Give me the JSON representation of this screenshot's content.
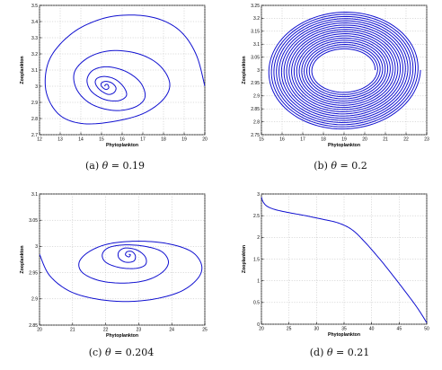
{
  "chart_data": [
    {
      "id": "a",
      "type": "line",
      "caption_prefix": "(a)",
      "caption_theta": "θ",
      "caption_value": "= 0.19",
      "xlabel": "Phytoplankton",
      "ylabel": "Zooplankton",
      "xlim": [
        12,
        20
      ],
      "ylim": [
        2.7,
        3.5
      ],
      "xticks": [
        12,
        13,
        14,
        15,
        16,
        17,
        18,
        19,
        20
      ],
      "yticks": [
        2.7,
        2.8,
        2.9,
        3.0,
        3.1,
        3.2,
        3.3,
        3.4,
        3.5
      ],
      "xticklabels": [
        "12",
        "13",
        "14",
        "15",
        "16",
        "17",
        "18",
        "19",
        "20"
      ],
      "yticklabels": [
        "2.7",
        "2.8",
        "2.9",
        "3",
        "3.1",
        "3.2",
        "3.3",
        "3.4",
        "3.5"
      ],
      "grid": true,
      "series": [
        {
          "style": "spiral-in",
          "color": "#1010d0",
          "center": [
            15.2,
            3.0
          ],
          "x": [
            20.0,
            19.6,
            18.9,
            17.9,
            16.6,
            15.1,
            13.6,
            12.5,
            12.3,
            12.9,
            14.0,
            15.5,
            17.0,
            18.0,
            18.3,
            17.8,
            16.8,
            15.5,
            14.4,
            13.7,
            13.8,
            14.5,
            15.6,
            16.6,
            17.1,
            16.9,
            16.2,
            15.3,
            14.6,
            14.3,
            14.5,
            15.1,
            15.8,
            16.2,
            16.1,
            15.7,
            15.2,
            14.8,
            14.7,
            14.9,
            15.3,
            15.6,
            15.7,
            15.5,
            15.2,
            15.0,
            15.0,
            15.2,
            15.35,
            15.3,
            15.2,
            15.15
          ],
          "y": [
            3.0,
            3.19,
            3.33,
            3.41,
            3.44,
            3.42,
            3.33,
            3.17,
            2.98,
            2.83,
            2.77,
            2.78,
            2.83,
            2.92,
            3.02,
            3.13,
            3.2,
            3.22,
            3.18,
            3.09,
            2.98,
            2.89,
            2.85,
            2.87,
            2.93,
            3.02,
            3.09,
            3.12,
            3.1,
            3.04,
            2.97,
            2.92,
            2.91,
            2.94,
            2.99,
            3.04,
            3.06,
            3.05,
            3.02,
            2.98,
            2.95,
            2.96,
            2.99,
            3.02,
            3.03,
            3.02,
            3.0,
            2.98,
            2.99,
            3.01,
            3.01,
            3.0
          ]
        }
      ]
    },
    {
      "id": "b",
      "type": "line",
      "caption_prefix": "(b)",
      "caption_theta": "θ",
      "caption_value": "= 0.2",
      "xlabel": "Phytoplankton",
      "ylabel": "Zooplankton",
      "xlim": [
        15,
        23
      ],
      "ylim": [
        2.75,
        3.25
      ],
      "xticks": [
        15,
        16,
        17,
        18,
        19,
        20,
        21,
        22,
        23
      ],
      "yticks": [
        2.75,
        2.8,
        2.85,
        2.9,
        2.95,
        3.0,
        3.05,
        3.1,
        3.15,
        3.2,
        3.25
      ],
      "xticklabels": [
        "15",
        "16",
        "17",
        "18",
        "19",
        "20",
        "21",
        "22",
        "23"
      ],
      "yticklabels": [
        "2.75",
        "2.8",
        "2.85",
        "2.9",
        "2.95",
        "3",
        "3.05",
        "3.1",
        "3.15",
        "3.2",
        "3.25"
      ],
      "grid": true,
      "series": [
        {
          "style": "spiral-out",
          "color": "#1010d0",
          "center": [
            19.0,
            3.0
          ],
          "inner_radius": [
            1.5,
            0.08
          ],
          "outer_radius": [
            3.7,
            0.23
          ],
          "turns": 18
        }
      ]
    },
    {
      "id": "c",
      "type": "line",
      "caption_prefix": "(c)",
      "caption_theta": "θ",
      "caption_value": "= 0.204",
      "xlabel": "Phytoplankton",
      "ylabel": "Zooplankton",
      "xlim": [
        20,
        25
      ],
      "ylim": [
        2.85,
        3.1
      ],
      "xticks": [
        20,
        21,
        22,
        23,
        24,
        25
      ],
      "yticks": [
        2.85,
        2.9,
        2.95,
        3.0,
        3.05,
        3.1
      ],
      "xticklabels": [
        "20",
        "21",
        "22",
        "23",
        "24",
        "25"
      ],
      "yticklabels": [
        "2.85",
        "2.9",
        "2.95",
        "3",
        "3.05",
        "3.1"
      ],
      "grid": true,
      "series": [
        {
          "style": "spiral-in",
          "color": "#1010d0",
          "center": [
            22.7,
            2.985
          ],
          "x": [
            20.0,
            20.3,
            20.9,
            21.7,
            22.6,
            23.5,
            24.3,
            24.8,
            24.9,
            24.6,
            23.9,
            23.0,
            22.1,
            21.5,
            21.2,
            21.3,
            21.8,
            22.5,
            23.2,
            23.7,
            23.9,
            23.7,
            23.2,
            22.6,
            22.1,
            21.9,
            22.0,
            22.4,
            22.9,
            23.2,
            23.2,
            22.95,
            22.6,
            22.4,
            22.4,
            22.6,
            22.85,
            22.9,
            22.8,
            22.65,
            22.6,
            22.7,
            22.75,
            22.7
          ],
          "y": [
            2.985,
            2.945,
            2.915,
            2.9,
            2.895,
            2.9,
            2.915,
            2.94,
            2.965,
            2.99,
            3.005,
            3.01,
            3.005,
            2.99,
            2.97,
            2.95,
            2.935,
            2.93,
            2.935,
            2.95,
            2.97,
            2.99,
            3.0,
            3.003,
            2.998,
            2.985,
            2.97,
            2.96,
            2.958,
            2.965,
            2.98,
            2.993,
            2.997,
            2.99,
            2.978,
            2.97,
            2.972,
            2.982,
            2.99,
            2.99,
            2.984,
            2.98,
            2.984,
            2.985
          ]
        }
      ]
    },
    {
      "id": "d",
      "type": "line",
      "caption_prefix": "(d)",
      "caption_theta": "θ",
      "caption_value": "= 0.21",
      "xlabel": "Phytoplankton",
      "ylabel": "Zooplankton",
      "xlim": [
        20,
        50
      ],
      "ylim": [
        0,
        3
      ],
      "xticks": [
        20,
        25,
        30,
        35,
        40,
        45,
        50
      ],
      "yticks": [
        0,
        0.5,
        1.0,
        1.5,
        2.0,
        2.5,
        3.0
      ],
      "xticklabels": [
        "20",
        "25",
        "30",
        "35",
        "40",
        "45",
        "50"
      ],
      "yticklabels": [
        "0",
        "0.5",
        "1",
        "1.5",
        "2",
        "2.5",
        "3"
      ],
      "grid": true,
      "series": [
        {
          "style": "polyline",
          "color": "#1010d0",
          "x": [
            20.0,
            20.3,
            21.0,
            22.5,
            25.0,
            28.0,
            31.0,
            33.5,
            35.5,
            37.0,
            38.5,
            40.0,
            42.0,
            44.0,
            46.0,
            48.0,
            49.3,
            50.0
          ],
          "y": [
            2.93,
            2.82,
            2.72,
            2.64,
            2.57,
            2.5,
            2.42,
            2.35,
            2.25,
            2.12,
            1.93,
            1.72,
            1.42,
            1.1,
            0.77,
            0.43,
            0.18,
            0.03
          ]
        }
      ]
    }
  ]
}
